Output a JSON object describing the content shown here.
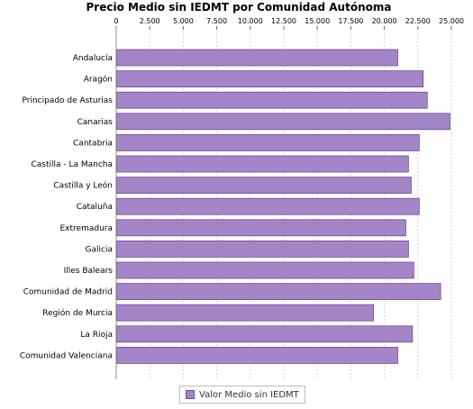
{
  "chart_data": {
    "type": "bar",
    "orientation": "horizontal",
    "title": "Precio Medio sin IEDMT por Comunidad Autónoma",
    "categories": [
      "Andalucía",
      "Aragón",
      "Principado de Asturias",
      "Canarias",
      "Cantabria",
      "Castilla - La Mancha",
      "Castilla y León",
      "Cataluña",
      "Extremadura",
      "Galicia",
      "Illes Balears",
      "Comunidad de Madrid",
      "Región de Murcia",
      "La Rioja",
      "Comunidad Valenciana"
    ],
    "series": [
      {
        "name": "Valor Medio sin IEDMT",
        "values": [
          21000,
          22900,
          23200,
          24900,
          22600,
          21800,
          22000,
          22600,
          21600,
          21800,
          22200,
          24200,
          19200,
          22100,
          21000
        ],
        "color": "#a385c8",
        "border_color": "#6d4a9a"
      }
    ],
    "xlim": [
      0,
      25000
    ],
    "xticks": [
      0,
      2500,
      5000,
      7500,
      10000,
      12500,
      15000,
      17500,
      20000,
      22500,
      25000
    ],
    "xtick_labels": [
      "0",
      "2.500",
      "5.000",
      "7.500",
      "10.000",
      "12.500",
      "15.000",
      "17.500",
      "20.000",
      "22.500",
      "25.000"
    ],
    "x_axis_position": "top",
    "grid": true,
    "legend_position": "bottom-center"
  }
}
